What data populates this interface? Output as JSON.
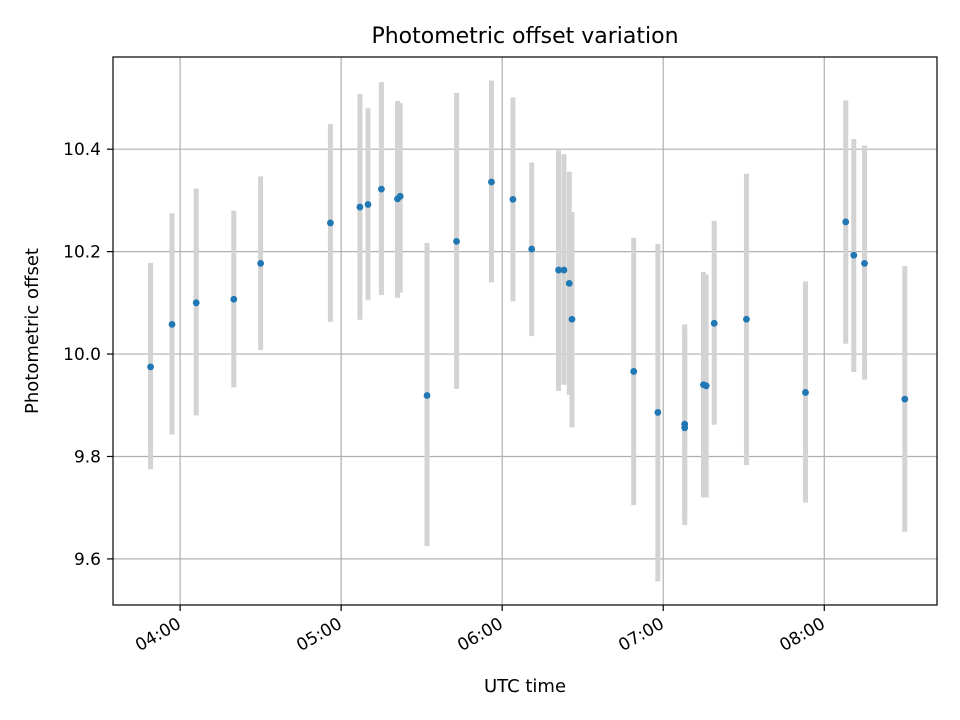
{
  "chart_data": {
    "type": "scatter",
    "title": "Photometric offset variation",
    "xlabel": "UTC time",
    "ylabel": "Photometric offset",
    "xlim": [
      "03:35",
      "08:42"
    ],
    "ylim": [
      9.51,
      10.58
    ],
    "x_ticks": [
      "04:00",
      "05:00",
      "06:00",
      "07:00",
      "08:00"
    ],
    "y_ticks": [
      9.6,
      9.8,
      10.0,
      10.2,
      10.4
    ],
    "grid": true,
    "marker_color": "#1f77b4",
    "errorbar_color": "#d3d3d3",
    "points": [
      {
        "time": "03:49",
        "y": 9.975,
        "low": 9.775,
        "high": 10.178
      },
      {
        "time": "03:57",
        "y": 10.058,
        "low": 9.843,
        "high": 10.275
      },
      {
        "time": "04:06",
        "y": 10.1,
        "low": 9.88,
        "high": 10.323
      },
      {
        "time": "04:20",
        "y": 10.107,
        "low": 9.935,
        "high": 10.28
      },
      {
        "time": "04:30",
        "y": 10.177,
        "low": 10.008,
        "high": 10.347
      },
      {
        "time": "04:56",
        "y": 10.256,
        "low": 10.063,
        "high": 10.449
      },
      {
        "time": "05:07",
        "y": 10.287,
        "low": 10.067,
        "high": 10.508
      },
      {
        "time": "05:10",
        "y": 10.292,
        "low": 10.105,
        "high": 10.48
      },
      {
        "time": "05:15",
        "y": 10.322,
        "low": 10.115,
        "high": 10.531
      },
      {
        "time": "05:21",
        "y": 10.303,
        "low": 10.11,
        "high": 10.494
      },
      {
        "time": "05:22",
        "y": 10.308,
        "low": 10.12,
        "high": 10.49
      },
      {
        "time": "05:32",
        "y": 9.919,
        "low": 9.625,
        "high": 10.217
      },
      {
        "time": "05:43",
        "y": 10.22,
        "low": 9.932,
        "high": 10.51
      },
      {
        "time": "05:56",
        "y": 10.336,
        "low": 10.14,
        "high": 10.534
      },
      {
        "time": "06:04",
        "y": 10.302,
        "low": 10.103,
        "high": 10.501
      },
      {
        "time": "06:11",
        "y": 10.205,
        "low": 10.035,
        "high": 10.374
      },
      {
        "time": "06:21",
        "y": 10.164,
        "low": 9.928,
        "high": 10.398
      },
      {
        "time": "06:23",
        "y": 10.164,
        "low": 9.94,
        "high": 10.39
      },
      {
        "time": "06:25",
        "y": 10.138,
        "low": 9.92,
        "high": 10.356
      },
      {
        "time": "06:26",
        "y": 10.068,
        "low": 9.857,
        "high": 10.277
      },
      {
        "time": "06:49",
        "y": 9.966,
        "low": 9.705,
        "high": 10.227
      },
      {
        "time": "06:58",
        "y": 9.886,
        "low": 9.556,
        "high": 10.215
      },
      {
        "time": "07:08",
        "y": 9.863,
        "low": 9.666,
        "high": 10.058
      },
      {
        "time": "07:08",
        "y": 9.856,
        "low": 9.68,
        "high": 10.05
      },
      {
        "time": "07:15",
        "y": 9.94,
        "low": 9.72,
        "high": 10.16
      },
      {
        "time": "07:16",
        "y": 9.938,
        "low": 9.72,
        "high": 10.155
      },
      {
        "time": "07:19",
        "y": 10.06,
        "low": 9.862,
        "high": 10.26
      },
      {
        "time": "07:31",
        "y": 10.068,
        "low": 9.783,
        "high": 10.352
      },
      {
        "time": "07:53",
        "y": 9.925,
        "low": 9.71,
        "high": 10.142
      },
      {
        "time": "08:08",
        "y": 10.258,
        "low": 10.02,
        "high": 10.495
      },
      {
        "time": "08:11",
        "y": 10.193,
        "low": 9.965,
        "high": 10.42
      },
      {
        "time": "08:15",
        "y": 10.177,
        "low": 9.95,
        "high": 10.407
      },
      {
        "time": "08:30",
        "y": 9.912,
        "low": 9.653,
        "high": 10.172
      }
    ]
  }
}
